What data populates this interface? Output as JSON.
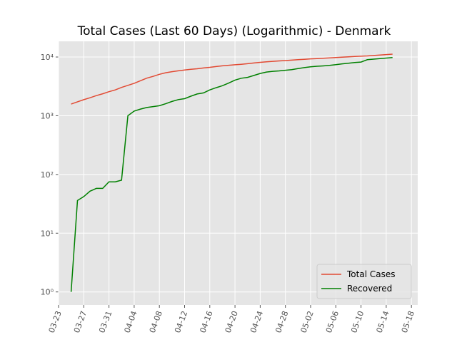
{
  "chart_data": {
    "type": "line",
    "title": "Total Cases (Last 60 Days) (Logarithmic) - Denmark",
    "x": [
      "03-25",
      "03-26",
      "03-27",
      "03-28",
      "03-29",
      "03-30",
      "03-31",
      "04-01",
      "04-02",
      "04-03",
      "04-04",
      "04-05",
      "04-06",
      "04-07",
      "04-08",
      "04-09",
      "04-10",
      "04-11",
      "04-12",
      "04-13",
      "04-14",
      "04-15",
      "04-16",
      "04-17",
      "04-18",
      "04-19",
      "04-20",
      "04-21",
      "04-22",
      "04-23",
      "04-24",
      "04-25",
      "04-26",
      "04-27",
      "04-28",
      "04-29",
      "04-30",
      "05-01",
      "05-02",
      "05-03",
      "05-04",
      "05-05",
      "05-06",
      "05-07",
      "05-08",
      "05-09",
      "05-10",
      "05-11",
      "05-12",
      "05-13",
      "05-14",
      "05-15"
    ],
    "series": [
      {
        "name": "Total Cases",
        "color": "#E24A33",
        "values": [
          1577,
          1724,
          1877,
          2023,
          2201,
          2366,
          2564,
          2755,
          3039,
          3290,
          3573,
          3946,
          4369,
          4681,
          5071,
          5402,
          5635,
          5819,
          5996,
          6174,
          6318,
          6511,
          6681,
          6879,
          7073,
          7242,
          7384,
          7515,
          7695,
          7912,
          8108,
          8271,
          8445,
          8575,
          8698,
          8851,
          9008,
          9158,
          9311,
          9407,
          9523,
          9670,
          9821,
          9938,
          10083,
          10218,
          10319,
          10429,
          10600,
          10800,
          11000,
          11200
        ]
      },
      {
        "name": "Recovered",
        "color": "#008000",
        "values": [
          1,
          36,
          42,
          52,
          58,
          58,
          75,
          75,
          80,
          1000,
          1200,
          1300,
          1380,
          1430,
          1480,
          1600,
          1750,
          1880,
          1950,
          2150,
          2350,
          2450,
          2750,
          3000,
          3250,
          3600,
          4050,
          4350,
          4500,
          4850,
          5250,
          5550,
          5700,
          5800,
          5950,
          6100,
          6350,
          6600,
          6800,
          6950,
          7050,
          7200,
          7400,
          7650,
          7850,
          8050,
          8200,
          9000,
          9200,
          9400,
          9600,
          9800
        ]
      }
    ],
    "xlim": [
      "03-23",
      "05-19"
    ],
    "xticks": [
      "03-23",
      "03-27",
      "03-31",
      "04-04",
      "04-08",
      "04-12",
      "04-16",
      "04-20",
      "04-24",
      "04-28",
      "05-02",
      "05-06",
      "05-10",
      "05-14",
      "05-18"
    ],
    "ylim": [
      0.6,
      18500
    ],
    "log_y": true,
    "yticks": [
      {
        "value": 1,
        "label": "10⁰"
      },
      {
        "value": 10,
        "label": "10¹"
      },
      {
        "value": 100,
        "label": "10²"
      },
      {
        "value": 1000,
        "label": "10³"
      },
      {
        "value": 10000,
        "label": "10⁴"
      }
    ],
    "grid": true,
    "legend": "lower right"
  }
}
